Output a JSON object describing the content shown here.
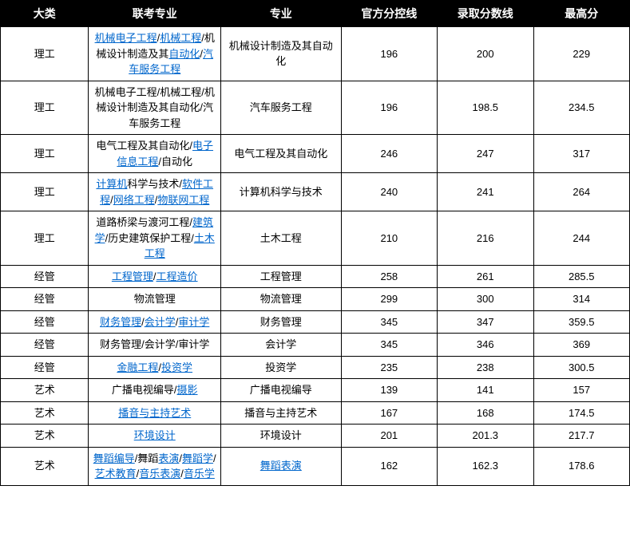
{
  "columns": [
    "大类",
    "联考专业",
    "专业",
    "官方分控线",
    "录取分数线",
    "最高分"
  ],
  "link_color": "#0066cc",
  "header_bg": "#000000",
  "header_fg": "#ffffff",
  "rows": [
    {
      "category": "理工",
      "majors_group": [
        {
          "t": "机械电子工程",
          "l": true
        },
        {
          "t": "/",
          "l": false
        },
        {
          "t": "机械工程",
          "l": true
        },
        {
          "t": "/机械设计制造及其",
          "l": false
        },
        {
          "t": "自动化",
          "l": true
        },
        {
          "t": "/",
          "l": false
        },
        {
          "t": "汽车服务工程",
          "l": true
        }
      ],
      "major": [
        {
          "t": "机械设计制造及其自动化",
          "l": false
        }
      ],
      "official": "196",
      "admit": "200",
      "max": "229"
    },
    {
      "category": "理工",
      "majors_group": [
        {
          "t": "机械电子工程/机械工程/机械设计制造及其自动化/汽车服务工程",
          "l": false
        }
      ],
      "major": [
        {
          "t": "汽车服务工程",
          "l": false
        }
      ],
      "official": "196",
      "admit": "198.5",
      "max": "234.5"
    },
    {
      "category": "理工",
      "majors_group": [
        {
          "t": "电气工程及其自动化/",
          "l": false
        },
        {
          "t": "电子信息工程",
          "l": true
        },
        {
          "t": "/自动化",
          "l": false
        }
      ],
      "major": [
        {
          "t": "电气工程及其自动化",
          "l": false
        }
      ],
      "official": "246",
      "admit": "247",
      "max": "317"
    },
    {
      "category": "理工",
      "majors_group": [
        {
          "t": "计算机",
          "l": true
        },
        {
          "t": "科学与技术/",
          "l": false
        },
        {
          "t": "软件工程",
          "l": true
        },
        {
          "t": "/",
          "l": false
        },
        {
          "t": "网络工程",
          "l": true
        },
        {
          "t": "/",
          "l": false
        },
        {
          "t": "物联网工程",
          "l": true
        }
      ],
      "major": [
        {
          "t": "计算机科学与技术",
          "l": false
        }
      ],
      "official": "240",
      "admit": "241",
      "max": "264"
    },
    {
      "category": "理工",
      "majors_group": [
        {
          "t": "道路桥梁与渡河工程/",
          "l": false
        },
        {
          "t": "建筑学",
          "l": true
        },
        {
          "t": "/历史建筑保护工程/",
          "l": false
        },
        {
          "t": "土木工程",
          "l": true
        }
      ],
      "major": [
        {
          "t": "土木工程",
          "l": false
        }
      ],
      "official": "210",
      "admit": "216",
      "max": "244"
    },
    {
      "category": "经管",
      "majors_group": [
        {
          "t": "工程管理",
          "l": true
        },
        {
          "t": "/",
          "l": false
        },
        {
          "t": "工程造价",
          "l": true
        }
      ],
      "major": [
        {
          "t": "工程管理",
          "l": false
        }
      ],
      "official": "258",
      "admit": "261",
      "max": "285.5"
    },
    {
      "category": "经管",
      "majors_group": [
        {
          "t": "物流管理",
          "l": false
        }
      ],
      "major": [
        {
          "t": "物流管理",
          "l": false
        }
      ],
      "official": "299",
      "admit": "300",
      "max": "314"
    },
    {
      "category": "经管",
      "majors_group": [
        {
          "t": "财务管理",
          "l": true
        },
        {
          "t": "/",
          "l": false
        },
        {
          "t": "会计学",
          "l": true
        },
        {
          "t": "/",
          "l": false
        },
        {
          "t": "审计学",
          "l": true
        }
      ],
      "major": [
        {
          "t": "财务管理",
          "l": false
        }
      ],
      "official": "345",
      "admit": "347",
      "max": "359.5"
    },
    {
      "category": "经管",
      "majors_group": [
        {
          "t": "财务管理/会计学/审计学",
          "l": false
        }
      ],
      "major": [
        {
          "t": "会计学",
          "l": false
        }
      ],
      "official": "345",
      "admit": "346",
      "max": "369"
    },
    {
      "category": "经管",
      "majors_group": [
        {
          "t": "金融工程",
          "l": true
        },
        {
          "t": "/",
          "l": false
        },
        {
          "t": "投资学",
          "l": true
        }
      ],
      "major": [
        {
          "t": "投资学",
          "l": false
        }
      ],
      "official": "235",
      "admit": "238",
      "max": "300.5"
    },
    {
      "category": "艺术",
      "majors_group": [
        {
          "t": "广播电视编导/",
          "l": false
        },
        {
          "t": "摄影",
          "l": true
        }
      ],
      "major": [
        {
          "t": "广播电视编导",
          "l": false
        }
      ],
      "official": "139",
      "admit": "141",
      "max": "157"
    },
    {
      "category": "艺术",
      "majors_group": [
        {
          "t": "播音与主持艺术",
          "l": true
        }
      ],
      "major": [
        {
          "t": "播音与主持艺术",
          "l": false
        }
      ],
      "official": "167",
      "admit": "168",
      "max": "174.5"
    },
    {
      "category": "艺术",
      "majors_group": [
        {
          "t": "环境设计",
          "l": true
        }
      ],
      "major": [
        {
          "t": "环境设计",
          "l": false
        }
      ],
      "official": "201",
      "admit": "201.3",
      "max": "217.7"
    },
    {
      "category": "艺术",
      "majors_group": [
        {
          "t": "舞蹈编导",
          "l": true
        },
        {
          "t": "/舞蹈",
          "l": false
        },
        {
          "t": "表演",
          "l": true
        },
        {
          "t": "/",
          "l": false
        },
        {
          "t": "舞蹈学",
          "l": true
        },
        {
          "t": "/",
          "l": false
        },
        {
          "t": "艺术教育",
          "l": true
        },
        {
          "t": "/",
          "l": false
        },
        {
          "t": "音乐表演",
          "l": true
        },
        {
          "t": "/",
          "l": false
        },
        {
          "t": "音乐学",
          "l": true
        }
      ],
      "major": [
        {
          "t": "舞蹈表演",
          "l": true
        }
      ],
      "official": "162",
      "admit": "162.3",
      "max": "178.6"
    }
  ]
}
